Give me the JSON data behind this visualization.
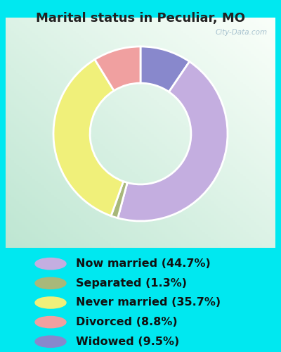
{
  "title": "Marital status in Peculiar, MO",
  "slices": [
    44.7,
    1.3,
    35.7,
    8.8,
    9.5
  ],
  "labels": [
    "Now married (44.7%)",
    "Separated (1.3%)",
    "Never married (35.7%)",
    "Divorced (8.8%)",
    "Widowed (9.5%)"
  ],
  "colors": [
    "#c4aee0",
    "#a8b87a",
    "#f0f07a",
    "#f0a0a0",
    "#8888cc"
  ],
  "outer_background": "#00e8f0",
  "title_fontsize": 13,
  "legend_fontsize": 11.5,
  "watermark": "City-Data.com",
  "wedge_order": [
    4,
    0,
    1,
    2,
    3
  ],
  "chart_bg_color": "#e8f5ee",
  "title_color": "#222222"
}
